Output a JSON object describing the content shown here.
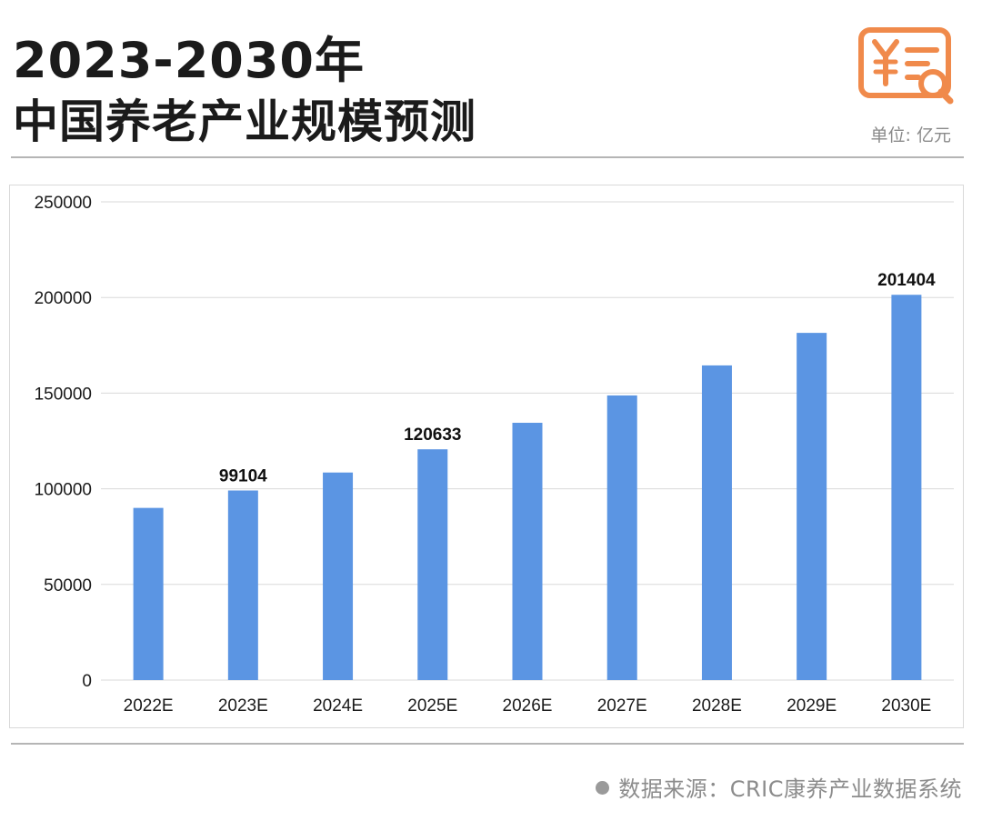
{
  "header": {
    "title_line1": "2023-2030年",
    "title_line2": "中国养老产业规模预测",
    "unit": "单位: 亿元",
    "logo_icon": "receipt-yuan-search-icon",
    "logo_color": "#f08a4b"
  },
  "footer": {
    "source": "数据来源：CRIC康养产业数据系统"
  },
  "colors": {
    "bar": "#5b95e3",
    "grid": "#d9d9d9"
  },
  "chart_data": {
    "type": "bar",
    "title": "2023-2030年 中国养老产业规模预测",
    "xlabel": "",
    "ylabel": "单位: 亿元",
    "categories": [
      "2022E",
      "2023E",
      "2024E",
      "2025E",
      "2026E",
      "2027E",
      "2028E",
      "2029E",
      "2030E"
    ],
    "values": [
      90000,
      99104,
      108500,
      120633,
      134500,
      148800,
      164500,
      181500,
      201404
    ],
    "data_labels": [
      null,
      "99104",
      null,
      "120633",
      null,
      null,
      null,
      null,
      "201404"
    ],
    "ylim": [
      0,
      250000
    ],
    "yticks": [
      0,
      50000,
      100000,
      150000,
      200000,
      250000
    ],
    "grid": true,
    "legend": "none"
  }
}
